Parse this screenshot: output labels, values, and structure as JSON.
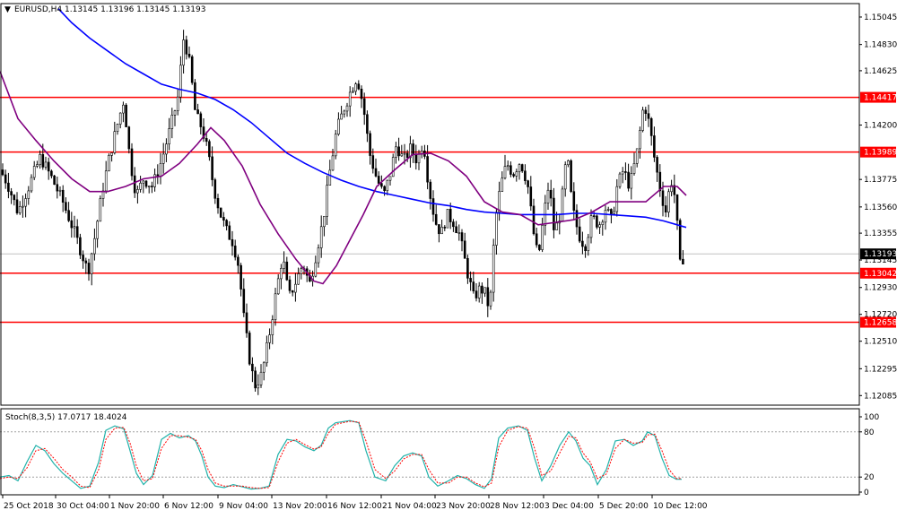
{
  "header": {
    "symbol": "EURUSD,H4",
    "ohlc": "1.13145 1.13196 1.13145 1.13193",
    "arrow_glyph": "▼"
  },
  "indicator": {
    "label": "Stoch(8,3,5) 17.0717 18.4024",
    "levels": [
      "100",
      "80",
      "20",
      "0"
    ],
    "level_values": [
      100,
      80,
      20,
      0
    ]
  },
  "colors": {
    "background": "#ffffff",
    "candle": "#000000",
    "sma_fast": "#800080",
    "sma_slow": "#0000ff",
    "level_line": "#ff0000",
    "level_label_bg": "#ff0000",
    "price_label_bg": "#000000",
    "stoch_main": "#20b2aa",
    "stoch_signal": "#ff0000",
    "axis": "#000000"
  },
  "chart_data": {
    "type": "candlestick",
    "symbol": "EURUSD",
    "timeframe": "H4",
    "ylim": [
      1.1201,
      1.1515
    ],
    "y_ticks": [
      "1.15045",
      "1.14830",
      "1.14625",
      "1.14200",
      "1.13775",
      "1.13560",
      "1.13355",
      "1.13145",
      "1.12930",
      "1.12720",
      "1.12510",
      "1.12295",
      "1.12085"
    ],
    "x_ticks": [
      "25 Oct 2018",
      "30 Oct 04:00",
      "1 Nov 20:00",
      "6 Nov 12:00",
      "9 Nov 04:00",
      "13 Nov 20:00",
      "16 Nov 12:00",
      "21 Nov 04:00",
      "23 Nov 20:00",
      "28 Nov 12:00",
      "3 Dec 04:00",
      "5 Dec 20:00",
      "10 Dec 12:00"
    ],
    "current_price": "1.13193",
    "horizontal_levels": [
      "1.14417",
      "1.13989",
      "1.13042",
      "1.12658"
    ],
    "close_path": [
      [
        0,
        1.1385
      ],
      [
        8,
        1.1375
      ],
      [
        20,
        1.1352
      ],
      [
        32,
        1.1372
      ],
      [
        45,
        1.1395
      ],
      [
        58,
        1.1378
      ],
      [
        70,
        1.136
      ],
      [
        82,
        1.1338
      ],
      [
        92,
        1.1318
      ],
      [
        98,
        1.1305
      ],
      [
        105,
        1.133
      ],
      [
        115,
        1.1372
      ],
      [
        122,
        1.1395
      ],
      [
        130,
        1.1418
      ],
      [
        138,
        1.144
      ],
      [
        145,
        1.1392
      ],
      [
        152,
        1.1365
      ],
      [
        160,
        1.1378
      ],
      [
        170,
        1.1372
      ],
      [
        180,
        1.1392
      ],
      [
        190,
        1.1418
      ],
      [
        198,
        1.144
      ],
      [
        205,
        1.149
      ],
      [
        212,
        1.1465
      ],
      [
        218,
        1.1428
      ],
      [
        225,
        1.1418
      ],
      [
        232,
        1.1398
      ],
      [
        238,
        1.1372
      ],
      [
        245,
        1.1352
      ],
      [
        252,
        1.1338
      ],
      [
        260,
        1.1328
      ],
      [
        266,
        1.131
      ],
      [
        272,
        1.1268
      ],
      [
        278,
        1.1238
      ],
      [
        284,
        1.1216
      ],
      [
        292,
        1.1225
      ],
      [
        300,
        1.1255
      ],
      [
        308,
        1.129
      ],
      [
        315,
        1.1318
      ],
      [
        322,
        1.1285
      ],
      [
        330,
        1.1298
      ],
      [
        338,
        1.1312
      ],
      [
        345,
        1.1295
      ],
      [
        352,
        1.1318
      ],
      [
        360,
        1.1345
      ],
      [
        368,
        1.1385
      ],
      [
        375,
        1.1415
      ],
      [
        383,
        1.1432
      ],
      [
        390,
        1.1445
      ],
      [
        398,
        1.1458
      ],
      [
        405,
        1.1435
      ],
      [
        412,
        1.1398
      ],
      [
        420,
        1.1378
      ],
      [
        428,
        1.1365
      ],
      [
        435,
        1.1382
      ],
      [
        442,
        1.1405
      ],
      [
        450,
        1.1392
      ],
      [
        458,
        1.1402
      ],
      [
        465,
        1.1392
      ],
      [
        472,
        1.1408
      ],
      [
        478,
        1.1372
      ],
      [
        485,
        1.1345
      ],
      [
        492,
        1.1335
      ],
      [
        498,
        1.135
      ],
      [
        505,
        1.1345
      ],
      [
        512,
        1.1335
      ],
      [
        520,
        1.1308
      ],
      [
        528,
        1.1285
      ],
      [
        535,
        1.1292
      ],
      [
        540,
        1.129
      ],
      [
        546,
        1.1275
      ],
      [
        552,
        1.1345
      ],
      [
        558,
        1.1372
      ],
      [
        565,
        1.139
      ],
      [
        572,
        1.1382
      ],
      [
        580,
        1.1392
      ],
      [
        588,
        1.1375
      ],
      [
        595,
        1.1335
      ],
      [
        600,
        1.1315
      ],
      [
        606,
        1.1348
      ],
      [
        612,
        1.1375
      ],
      [
        618,
        1.1335
      ],
      [
        625,
        1.1352
      ],
      [
        632,
        1.1398
      ],
      [
        638,
        1.1355
      ],
      [
        645,
        1.1335
      ],
      [
        652,
        1.1325
      ],
      [
        660,
        1.1348
      ],
      [
        668,
        1.1342
      ],
      [
        675,
        1.1355
      ],
      [
        682,
        1.1345
      ],
      [
        688,
        1.1372
      ],
      [
        695,
        1.1385
      ],
      [
        702,
        1.1372
      ],
      [
        710,
        1.1398
      ],
      [
        718,
        1.1438
      ],
      [
        724,
        1.142
      ],
      [
        730,
        1.1392
      ],
      [
        736,
        1.137
      ],
      [
        742,
        1.1352
      ],
      [
        748,
        1.1378
      ],
      [
        753,
        1.1362
      ],
      [
        758,
        1.131
      ],
      [
        763,
        1.1319
      ]
    ],
    "sma_fast_path": [
      [
        0,
        1.1462
      ],
      [
        20,
        1.1425
      ],
      [
        40,
        1.1408
      ],
      [
        60,
        1.1392
      ],
      [
        80,
        1.1378
      ],
      [
        100,
        1.1368
      ],
      [
        120,
        1.1368
      ],
      [
        140,
        1.1372
      ],
      [
        160,
        1.1378
      ],
      [
        180,
        1.138
      ],
      [
        200,
        1.139
      ],
      [
        220,
        1.1405
      ],
      [
        235,
        1.1418
      ],
      [
        250,
        1.1408
      ],
      [
        270,
        1.1388
      ],
      [
        290,
        1.1358
      ],
      [
        310,
        1.1335
      ],
      [
        330,
        1.1315
      ],
      [
        350,
        1.1298
      ],
      [
        360,
        1.1296
      ],
      [
        375,
        1.131
      ],
      [
        390,
        1.133
      ],
      [
        405,
        1.135
      ],
      [
        420,
        1.1372
      ],
      [
        440,
        1.1385
      ],
      [
        460,
        1.1397
      ],
      [
        480,
        1.1398
      ],
      [
        500,
        1.1392
      ],
      [
        520,
        1.138
      ],
      [
        540,
        1.136
      ],
      [
        560,
        1.1352
      ],
      [
        580,
        1.135
      ],
      [
        600,
        1.1342
      ],
      [
        620,
        1.1344
      ],
      [
        640,
        1.1346
      ],
      [
        660,
        1.1352
      ],
      [
        680,
        1.136
      ],
      [
        700,
        1.136
      ],
      [
        720,
        1.136
      ],
      [
        740,
        1.1372
      ],
      [
        755,
        1.1372
      ],
      [
        765,
        1.1365
      ]
    ],
    "sma_slow_path": [
      [
        65,
        1.1511
      ],
      [
        80,
        1.15
      ],
      [
        100,
        1.1488
      ],
      [
        120,
        1.1478
      ],
      [
        140,
        1.1468
      ],
      [
        160,
        1.146
      ],
      [
        180,
        1.1452
      ],
      [
        200,
        1.1448
      ],
      [
        220,
        1.1445
      ],
      [
        240,
        1.144
      ],
      [
        260,
        1.1432
      ],
      [
        280,
        1.1422
      ],
      [
        300,
        1.141
      ],
      [
        320,
        1.1398
      ],
      [
        340,
        1.139
      ],
      [
        360,
        1.1383
      ],
      [
        380,
        1.1377
      ],
      [
        400,
        1.1372
      ],
      [
        420,
        1.1368
      ],
      [
        440,
        1.1365
      ],
      [
        460,
        1.1362
      ],
      [
        480,
        1.1359
      ],
      [
        500,
        1.1357
      ],
      [
        520,
        1.1354
      ],
      [
        540,
        1.1352
      ],
      [
        560,
        1.1351
      ],
      [
        580,
        1.135
      ],
      [
        600,
        1.135
      ],
      [
        620,
        1.135
      ],
      [
        640,
        1.1351
      ],
      [
        660,
        1.1351
      ],
      [
        680,
        1.135
      ],
      [
        700,
        1.1349
      ],
      [
        720,
        1.1348
      ],
      [
        740,
        1.1345
      ],
      [
        755,
        1.1342
      ],
      [
        765,
        1.134
      ]
    ],
    "stoch_main": [
      [
        0,
        20
      ],
      [
        10,
        22
      ],
      [
        20,
        15
      ],
      [
        30,
        40
      ],
      [
        40,
        62
      ],
      [
        50,
        55
      ],
      [
        60,
        38
      ],
      [
        70,
        25
      ],
      [
        80,
        15
      ],
      [
        90,
        5
      ],
      [
        100,
        8
      ],
      [
        110,
        40
      ],
      [
        118,
        82
      ],
      [
        128,
        88
      ],
      [
        138,
        84
      ],
      [
        145,
        55
      ],
      [
        152,
        25
      ],
      [
        160,
        10
      ],
      [
        170,
        22
      ],
      [
        180,
        70
      ],
      [
        190,
        78
      ],
      [
        200,
        72
      ],
      [
        210,
        75
      ],
      [
        218,
        68
      ],
      [
        225,
        48
      ],
      [
        232,
        20
      ],
      [
        240,
        8
      ],
      [
        250,
        6
      ],
      [
        260,
        10
      ],
      [
        270,
        7
      ],
      [
        280,
        4
      ],
      [
        290,
        5
      ],
      [
        300,
        8
      ],
      [
        310,
        50
      ],
      [
        320,
        70
      ],
      [
        330,
        68
      ],
      [
        340,
        60
      ],
      [
        350,
        55
      ],
      [
        358,
        62
      ],
      [
        366,
        85
      ],
      [
        374,
        92
      ],
      [
        390,
        95
      ],
      [
        400,
        92
      ],
      [
        408,
        55
      ],
      [
        418,
        20
      ],
      [
        430,
        15
      ],
      [
        440,
        35
      ],
      [
        450,
        48
      ],
      [
        460,
        52
      ],
      [
        470,
        48
      ],
      [
        478,
        20
      ],
      [
        488,
        8
      ],
      [
        500,
        15
      ],
      [
        510,
        22
      ],
      [
        520,
        18
      ],
      [
        530,
        10
      ],
      [
        540,
        5
      ],
      [
        548,
        18
      ],
      [
        556,
        72
      ],
      [
        566,
        85
      ],
      [
        578,
        88
      ],
      [
        588,
        82
      ],
      [
        596,
        45
      ],
      [
        604,
        15
      ],
      [
        614,
        35
      ],
      [
        624,
        62
      ],
      [
        634,
        80
      ],
      [
        642,
        68
      ],
      [
        650,
        45
      ],
      [
        658,
        35
      ],
      [
        666,
        10
      ],
      [
        676,
        30
      ],
      [
        686,
        68
      ],
      [
        696,
        70
      ],
      [
        706,
        62
      ],
      [
        716,
        68
      ],
      [
        722,
        80
      ],
      [
        730,
        75
      ],
      [
        738,
        45
      ],
      [
        746,
        22
      ],
      [
        754,
        17
      ],
      [
        760,
        17
      ]
    ],
    "stoch_signal": [
      [
        0,
        18
      ],
      [
        10,
        20
      ],
      [
        20,
        18
      ],
      [
        30,
        32
      ],
      [
        40,
        55
      ],
      [
        50,
        58
      ],
      [
        60,
        45
      ],
      [
        70,
        30
      ],
      [
        80,
        20
      ],
      [
        90,
        8
      ],
      [
        100,
        6
      ],
      [
        110,
        30
      ],
      [
        118,
        70
      ],
      [
        128,
        85
      ],
      [
        138,
        86
      ],
      [
        145,
        65
      ],
      [
        152,
        35
      ],
      [
        160,
        15
      ],
      [
        170,
        18
      ],
      [
        180,
        58
      ],
      [
        190,
        75
      ],
      [
        200,
        75
      ],
      [
        210,
        73
      ],
      [
        218,
        70
      ],
      [
        225,
        55
      ],
      [
        232,
        30
      ],
      [
        240,
        12
      ],
      [
        250,
        8
      ],
      [
        260,
        8
      ],
      [
        270,
        8
      ],
      [
        280,
        6
      ],
      [
        290,
        5
      ],
      [
        300,
        6
      ],
      [
        310,
        40
      ],
      [
        320,
        65
      ],
      [
        330,
        70
      ],
      [
        340,
        63
      ],
      [
        350,
        57
      ],
      [
        358,
        60
      ],
      [
        366,
        78
      ],
      [
        374,
        90
      ],
      [
        390,
        94
      ],
      [
        400,
        93
      ],
      [
        408,
        68
      ],
      [
        418,
        30
      ],
      [
        430,
        18
      ],
      [
        440,
        28
      ],
      [
        450,
        44
      ],
      [
        460,
        50
      ],
      [
        470,
        50
      ],
      [
        478,
        30
      ],
      [
        488,
        12
      ],
      [
        500,
        12
      ],
      [
        510,
        20
      ],
      [
        520,
        20
      ],
      [
        530,
        12
      ],
      [
        540,
        7
      ],
      [
        548,
        12
      ],
      [
        556,
        60
      ],
      [
        566,
        82
      ],
      [
        578,
        87
      ],
      [
        588,
        85
      ],
      [
        596,
        58
      ],
      [
        604,
        22
      ],
      [
        614,
        28
      ],
      [
        624,
        52
      ],
      [
        634,
        74
      ],
      [
        642,
        72
      ],
      [
        650,
        52
      ],
      [
        658,
        40
      ],
      [
        666,
        18
      ],
      [
        676,
        24
      ],
      [
        686,
        58
      ],
      [
        696,
        70
      ],
      [
        706,
        65
      ],
      [
        716,
        66
      ],
      [
        722,
        76
      ],
      [
        730,
        77
      ],
      [
        738,
        55
      ],
      [
        746,
        30
      ],
      [
        754,
        18
      ],
      [
        760,
        18
      ]
    ]
  }
}
